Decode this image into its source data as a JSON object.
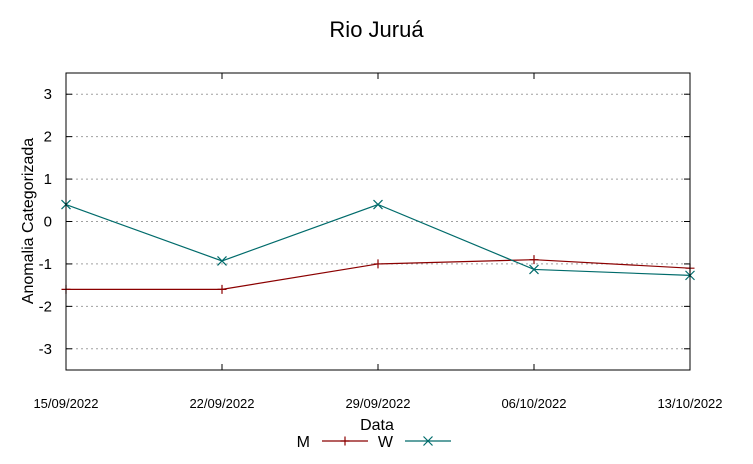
{
  "chart_data": {
    "type": "line",
    "title": "Rio Juruá",
    "xlabel": "Data",
    "ylabel": "Anomalia Categorizada",
    "categories": [
      "15/09/2022",
      "22/09/2022",
      "29/09/2022",
      "06/10/2022",
      "13/10/2022"
    ],
    "ylim": [
      -3.5,
      3.5
    ],
    "yticks": [
      3,
      2,
      1,
      0,
      -1,
      -2,
      -3
    ],
    "ytick_labels": [
      "3",
      "2",
      "1",
      "0",
      "-1",
      "-2",
      "-3"
    ],
    "grid": "horizontal dotted",
    "legend_position": "bottom",
    "series": [
      {
        "name": "M",
        "color": "#8b0000",
        "marker": "plus",
        "values": [
          -1.6,
          -1.6,
          -1.0,
          -0.9,
          -1.1
        ]
      },
      {
        "name": "W",
        "color": "#006b6b",
        "marker": "x",
        "values": [
          0.4,
          -0.93,
          0.4,
          -1.13,
          -1.27
        ]
      }
    ]
  }
}
